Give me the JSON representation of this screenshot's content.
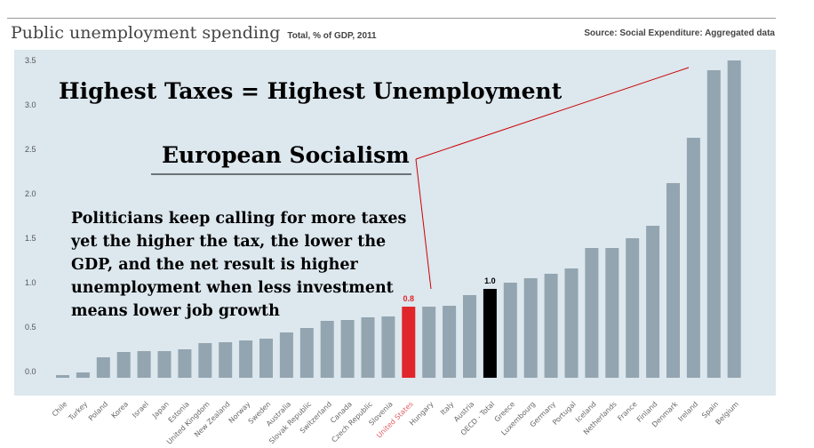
{
  "header": {
    "title": "Public unemployment spending",
    "subtitle": "Total, % of GDP, 2011",
    "source": "Source: Social Expenditure: Aggregated data"
  },
  "annotations": {
    "headline": "Highest Taxes = Highest Unemployment",
    "label": "European Socialism",
    "body": "Politicians keep calling for more taxes yet the higher the tax, the lower the GDP, and the net result is higher unemployment when less investment means lower job growth"
  },
  "chart_data": {
    "type": "bar",
    "title": "Public unemployment spending",
    "subtitle": "Total, % of GDP, 2011",
    "ylim": [
      0,
      3.5
    ],
    "yticks": [
      "0.0",
      "0.5",
      "1.0",
      "1.5",
      "2.0",
      "2.5",
      "3.0",
      "3.5"
    ],
    "grid": true,
    "categories": [
      "Chile",
      "Turkey",
      "Poland",
      "Korea",
      "Israel",
      "Japan",
      "Estonia",
      "United Kingdom",
      "New Zealand",
      "Norway",
      "Sweden",
      "Australia",
      "Slovak Republic",
      "Switzerland",
      "Canada",
      "Czech Republic",
      "Slovenia",
      "United States",
      "Hungary",
      "Italy",
      "Austria",
      "OECD - Total",
      "Greece",
      "Luxembourg",
      "Germany",
      "Portugal",
      "Iceland",
      "Netherlands",
      "France",
      "Finland",
      "Denmark",
      "Ireland",
      "Spain",
      "Belgium"
    ],
    "values": [
      0.03,
      0.06,
      0.23,
      0.29,
      0.3,
      0.3,
      0.32,
      0.39,
      0.4,
      0.42,
      0.44,
      0.51,
      0.56,
      0.64,
      0.65,
      0.68,
      0.69,
      0.8,
      0.8,
      0.81,
      0.93,
      1.0,
      1.07,
      1.12,
      1.17,
      1.23,
      1.46,
      1.46,
      1.57,
      1.71,
      2.19,
      2.7,
      3.46,
      3.57
    ],
    "highlights": {
      "United States": {
        "color": "#e0262b",
        "label": "0.8"
      },
      "OECD - Total": {
        "color": "#000000",
        "label": "1.0"
      }
    },
    "colors": {
      "bar": "#93a5b0",
      "plot_bg": "#dce7ee"
    }
  }
}
